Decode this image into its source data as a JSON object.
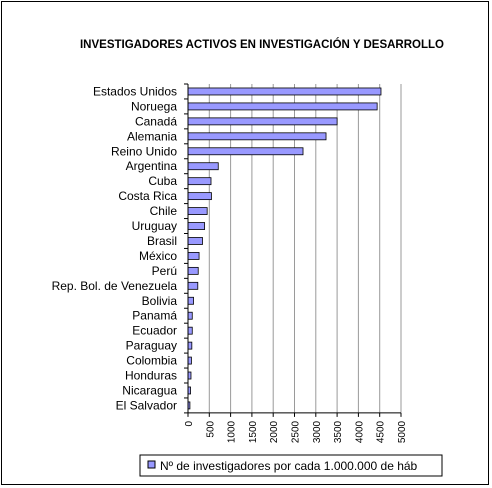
{
  "chart_data": {
    "type": "bar",
    "orientation": "horizontal",
    "title": "INVESTIGADORES ACTIVOS EN INVESTIGACIÓN Y DESARROLLO",
    "categories": [
      "Estados Unidos",
      "Noruega",
      "Canadá",
      "Alemania",
      "Reino Unido",
      "Argentina",
      "Cuba",
      "Costa Rica",
      "Chile",
      "Uruguay",
      "Brasil",
      "México",
      "Perú",
      "Rep. Bol. de Venezuela",
      "Bolivia",
      "Panamá",
      "Ecuador",
      "Paraguay",
      "Colombia",
      "Honduras",
      "Nicaragua",
      "El Salvador"
    ],
    "series": [
      {
        "name": "Nº de investigadores por cada 1.000.000 de háb",
        "color": "#9999ff",
        "values": [
          4530,
          4440,
          3500,
          3240,
          2700,
          710,
          540,
          550,
          450,
          390,
          340,
          260,
          240,
          230,
          130,
          100,
          100,
          90,
          80,
          70,
          60,
          45
        ]
      }
    ],
    "xlim": [
      0,
      5000
    ],
    "xticks": [
      "0",
      "500",
      "1000",
      "1500",
      "2000",
      "2500",
      "3000",
      "3500",
      "4000",
      "4500",
      "5000"
    ],
    "grid": true,
    "legend_position": "bottom-right"
  }
}
